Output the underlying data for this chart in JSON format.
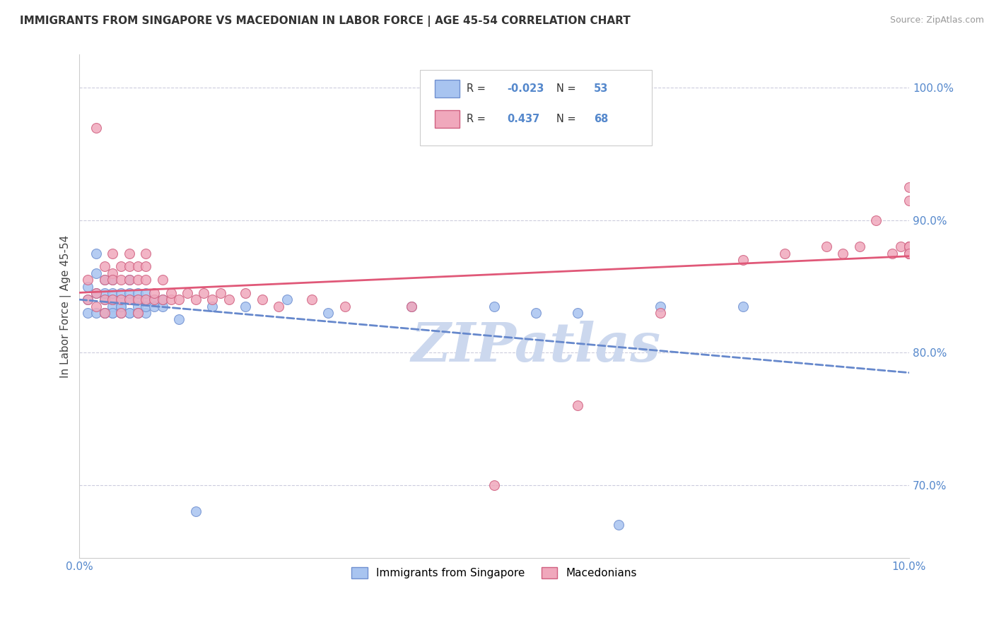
{
  "title": "IMMIGRANTS FROM SINGAPORE VS MACEDONIAN IN LABOR FORCE | AGE 45-54 CORRELATION CHART",
  "source": "Source: ZipAtlas.com",
  "ylabel": "In Labor Force | Age 45-54",
  "legend_labels": [
    "Immigrants from Singapore",
    "Macedonians"
  ],
  "r_singapore": -0.023,
  "n_singapore": 53,
  "r_macedonian": 0.437,
  "n_macedonian": 68,
  "xlim": [
    0.0,
    0.1
  ],
  "ylim": [
    0.645,
    1.025
  ],
  "yticks": [
    0.7,
    0.8,
    0.9,
    1.0
  ],
  "ytick_labels": [
    "70.0%",
    "80.0%",
    "90.0%",
    "100.0%"
  ],
  "xticks": [
    0.0,
    0.02,
    0.04,
    0.06,
    0.08,
    0.1
  ],
  "xtick_labels": [
    "0.0%",
    "",
    "",
    "",
    "",
    "10.0%"
  ],
  "color_singapore": "#a8c4f0",
  "color_macedonian": "#f0a8bc",
  "edge_color_singapore": "#7090d0",
  "edge_color_macedonian": "#d06080",
  "line_color_singapore": "#6688cc",
  "line_color_macedonian": "#e05878",
  "tick_color": "#5588cc",
  "background_color": "#ffffff",
  "watermark_color": "#ccd8ee",
  "singapore_x": [
    0.001,
    0.001,
    0.001,
    0.002,
    0.002,
    0.002,
    0.002,
    0.003,
    0.003,
    0.003,
    0.003,
    0.003,
    0.004,
    0.004,
    0.004,
    0.004,
    0.004,
    0.004,
    0.005,
    0.005,
    0.005,
    0.005,
    0.005,
    0.006,
    0.006,
    0.006,
    0.006,
    0.006,
    0.007,
    0.007,
    0.007,
    0.007,
    0.008,
    0.008,
    0.008,
    0.008,
    0.009,
    0.009,
    0.01,
    0.01,
    0.012,
    0.014,
    0.016,
    0.02,
    0.025,
    0.03,
    0.04,
    0.05,
    0.055,
    0.06,
    0.065,
    0.07,
    0.08
  ],
  "singapore_y": [
    0.83,
    0.84,
    0.85,
    0.83,
    0.845,
    0.86,
    0.875,
    0.83,
    0.84,
    0.845,
    0.855,
    0.83,
    0.83,
    0.835,
    0.84,
    0.845,
    0.855,
    0.83,
    0.835,
    0.84,
    0.845,
    0.83,
    0.835,
    0.84,
    0.845,
    0.83,
    0.855,
    0.83,
    0.84,
    0.845,
    0.835,
    0.83,
    0.84,
    0.845,
    0.83,
    0.835,
    0.84,
    0.835,
    0.835,
    0.84,
    0.825,
    0.68,
    0.835,
    0.835,
    0.84,
    0.83,
    0.835,
    0.835,
    0.83,
    0.83,
    0.67,
    0.835,
    0.835
  ],
  "macedonian_x": [
    0.001,
    0.001,
    0.002,
    0.002,
    0.002,
    0.003,
    0.003,
    0.003,
    0.003,
    0.004,
    0.004,
    0.004,
    0.004,
    0.005,
    0.005,
    0.005,
    0.005,
    0.006,
    0.006,
    0.006,
    0.006,
    0.007,
    0.007,
    0.007,
    0.007,
    0.008,
    0.008,
    0.008,
    0.008,
    0.009,
    0.009,
    0.01,
    0.01,
    0.011,
    0.011,
    0.012,
    0.013,
    0.014,
    0.015,
    0.016,
    0.017,
    0.018,
    0.02,
    0.022,
    0.024,
    0.028,
    0.032,
    0.04,
    0.05,
    0.06,
    0.07,
    0.08,
    0.085,
    0.09,
    0.092,
    0.094,
    0.096,
    0.098,
    0.099,
    0.1,
    0.1,
    0.1,
    0.1,
    0.1,
    0.1,
    0.1,
    0.1,
    0.1
  ],
  "macedonian_y": [
    0.84,
    0.855,
    0.835,
    0.845,
    0.97,
    0.84,
    0.855,
    0.865,
    0.83,
    0.84,
    0.86,
    0.875,
    0.855,
    0.84,
    0.855,
    0.865,
    0.83,
    0.84,
    0.855,
    0.865,
    0.875,
    0.84,
    0.855,
    0.865,
    0.83,
    0.84,
    0.855,
    0.865,
    0.875,
    0.84,
    0.845,
    0.84,
    0.855,
    0.84,
    0.845,
    0.84,
    0.845,
    0.84,
    0.845,
    0.84,
    0.845,
    0.84,
    0.845,
    0.84,
    0.835,
    0.84,
    0.835,
    0.835,
    0.7,
    0.76,
    0.83,
    0.87,
    0.875,
    0.88,
    0.875,
    0.88,
    0.9,
    0.875,
    0.88,
    0.915,
    0.925,
    0.875,
    0.88,
    0.875,
    0.88,
    0.875,
    0.88,
    0.875
  ]
}
